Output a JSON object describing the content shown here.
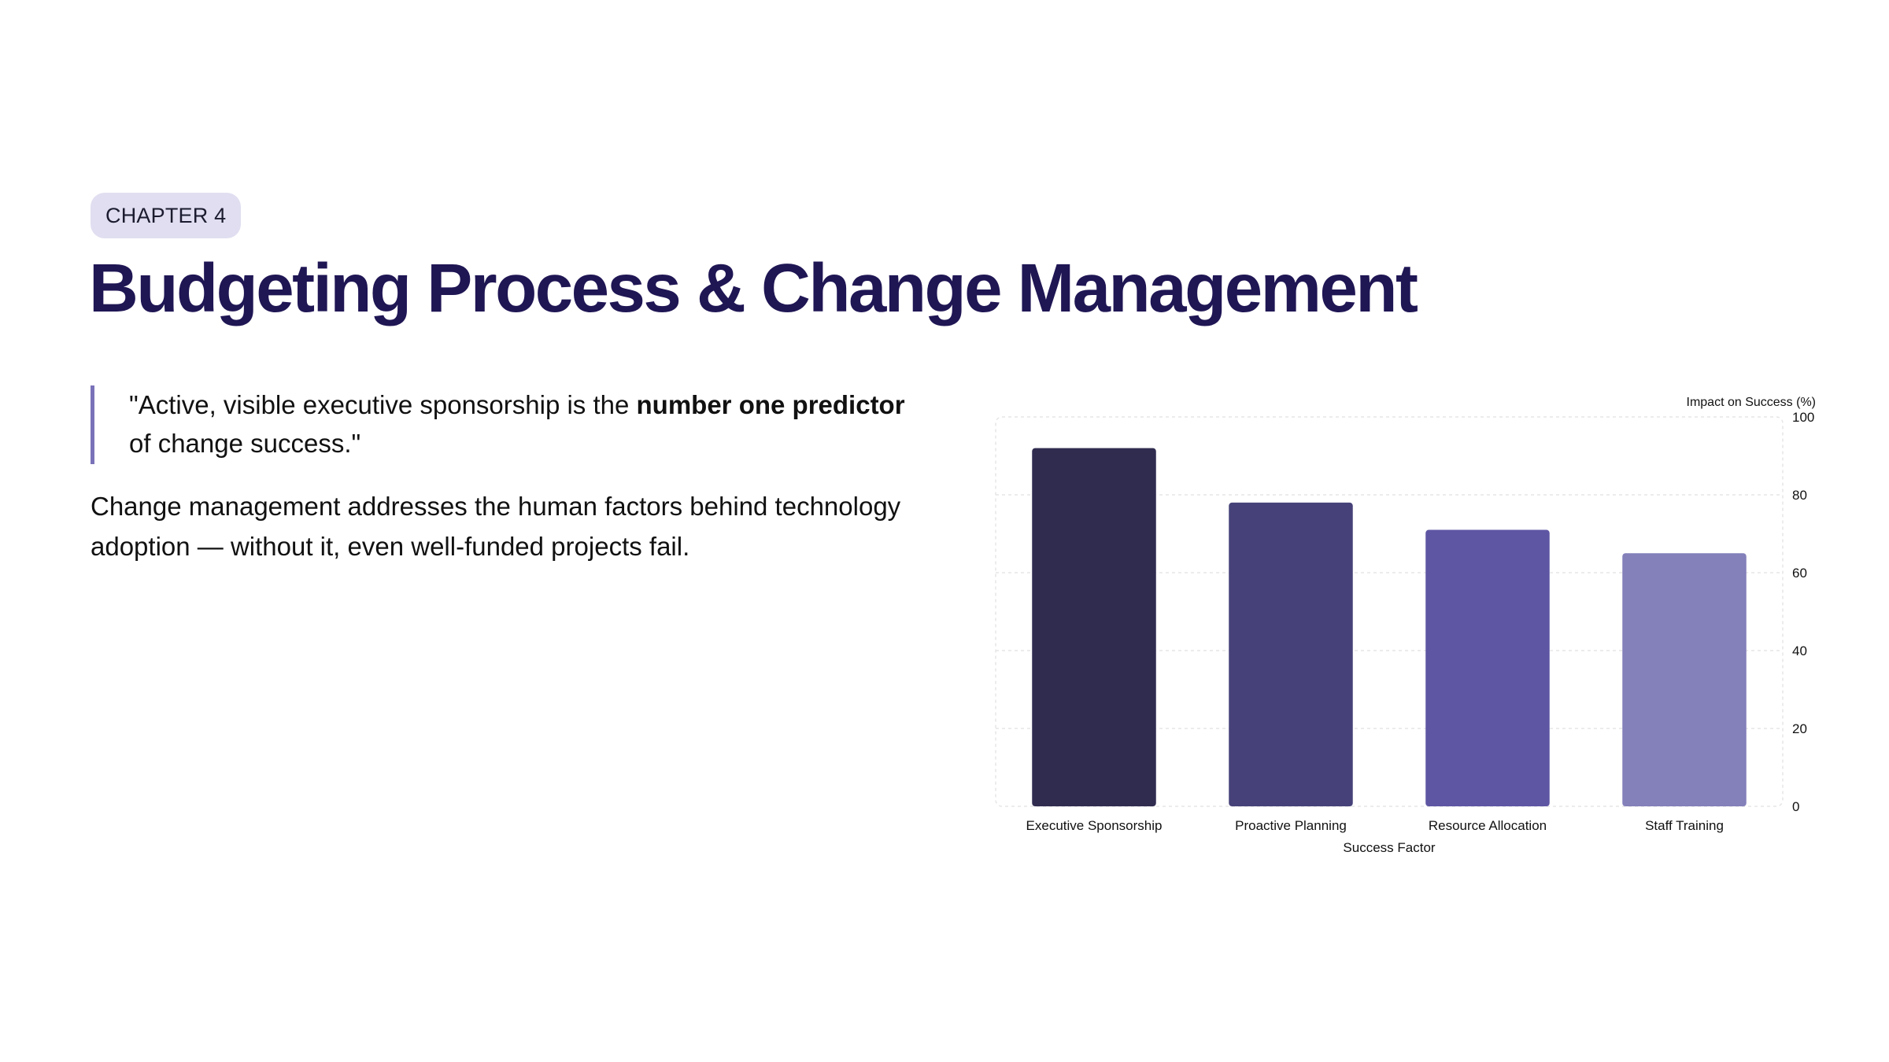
{
  "header": {
    "chapter": "CHAPTER 4",
    "title": "Budgeting Process & Change Management"
  },
  "quote": {
    "before": "\"Active, visible executive sponsorship is the ",
    "emphasis": "number one predictor",
    "after": " of change success.\""
  },
  "body": {
    "text": "Change management addresses the human factors behind technology adoption — without it, even well-funded projects fail."
  },
  "chart_data": {
    "type": "bar",
    "categories": [
      "Executive Sponsorship",
      "Proactive Planning",
      "Resource Allocation",
      "Staff Training"
    ],
    "values": [
      92,
      78,
      71,
      65
    ],
    "title": "",
    "xlabel": "Success Factor",
    "ylabel": "Impact on Success (%)",
    "ylim": [
      0,
      100
    ],
    "yticks": [
      0,
      20,
      40,
      60,
      80,
      100
    ],
    "y_axis_side": "right",
    "grid": true,
    "legend": "none",
    "colors": [
      "#302c50",
      "#464279",
      "#5e56a3",
      "#8380ba"
    ],
    "grid_color": "#e6e6e6"
  }
}
